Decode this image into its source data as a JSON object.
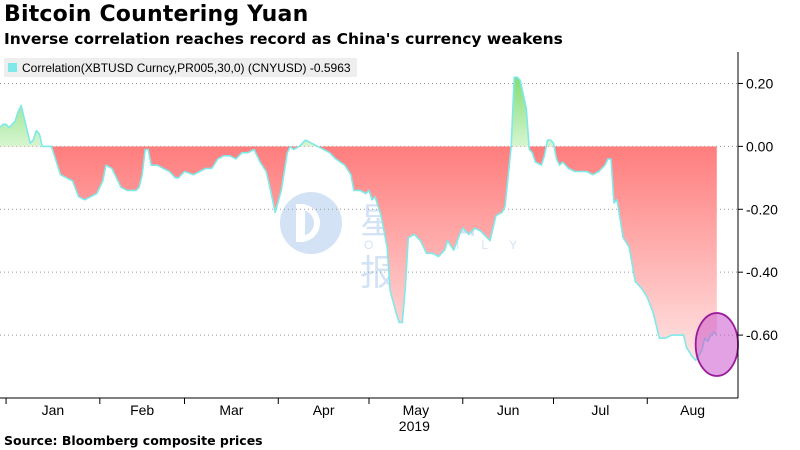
{
  "chart_data": {
    "type": "area",
    "title": "Bitcoin Countering Yuan",
    "subtitle": "Inverse correlation reaches record as China's currency weakens",
    "source": "Bloomberg composite prices",
    "legend": {
      "label": "Correlation(XBTUSD Curncy,PR005,30,0) (CNYUSD) -0.5963",
      "placement": "top-left"
    },
    "x_axis": {
      "type": "date",
      "range": [
        "2018-12-30",
        "2019-08-31"
      ],
      "month_labels": [
        "Jan",
        "Feb",
        "Mar",
        "Apr",
        "May",
        "Jun",
        "Jul",
        "Aug"
      ],
      "year_label": "2019"
    },
    "y_axis": {
      "side": "right",
      "ylim": [
        -0.8,
        0.3
      ],
      "ticks": [
        0.2,
        0.0,
        -0.2,
        -0.4,
        -0.6
      ],
      "tick_labels": [
        "0.20",
        "0.00",
        "-0.20",
        "-0.40",
        "-0.60"
      ],
      "grid": "horizontal dotted"
    },
    "colors": {
      "line": "#7fe9e9",
      "positive_top": "#7ddc72",
      "positive_bottom": "#d7f5d0",
      "negative_top": "#ff7d7d",
      "negative_bottom": "#ffe4e4",
      "highlight_fill": "#cc55cc",
      "highlight_stroke": "#9a1c9a"
    },
    "highlight": {
      "shape": "ellipse",
      "x_range": [
        "2019-08-17",
        "2019-08-31"
      ],
      "y_range": [
        -0.73,
        -0.53
      ]
    },
    "series": [
      {
        "name": "Correlation(XBTUSD Curncy,PR005,30,0) (CNYUSD)",
        "points": [
          [
            "2018-12-30",
            0.06
          ],
          [
            "2018-12-31",
            0.07
          ],
          [
            "2019-01-01",
            0.07
          ],
          [
            "2019-01-02",
            0.06
          ],
          [
            "2019-01-03",
            0.07
          ],
          [
            "2019-01-04",
            0.08
          ],
          [
            "2019-01-05",
            0.11
          ],
          [
            "2019-01-06",
            0.13
          ],
          [
            "2019-01-07",
            0.09
          ],
          [
            "2019-01-09",
            0.01
          ],
          [
            "2019-01-10",
            0.02
          ],
          [
            "2019-01-11",
            0.05
          ],
          [
            "2019-01-12",
            0.04
          ],
          [
            "2019-01-13",
            0.0
          ],
          [
            "2019-01-16",
            0.0
          ],
          [
            "2019-01-18",
            -0.06
          ],
          [
            "2019-01-19",
            -0.09
          ],
          [
            "2019-01-21",
            -0.1
          ],
          [
            "2019-01-23",
            -0.11
          ],
          [
            "2019-01-25",
            -0.16
          ],
          [
            "2019-01-27",
            -0.17
          ],
          [
            "2019-01-29",
            -0.16
          ],
          [
            "2019-01-31",
            -0.15
          ],
          [
            "2019-02-02",
            -0.11
          ],
          [
            "2019-02-03",
            -0.06
          ],
          [
            "2019-02-05",
            -0.07
          ],
          [
            "2019-02-06",
            -0.09
          ],
          [
            "2019-02-07",
            -0.11
          ],
          [
            "2019-02-08",
            -0.13
          ],
          [
            "2019-02-10",
            -0.14
          ],
          [
            "2019-02-13",
            -0.14
          ],
          [
            "2019-02-14",
            -0.13
          ],
          [
            "2019-02-15",
            -0.09
          ],
          [
            "2019-02-16",
            -0.01
          ],
          [
            "2019-02-17",
            -0.01
          ],
          [
            "2019-02-18",
            -0.06
          ],
          [
            "2019-02-20",
            -0.06
          ],
          [
            "2019-02-22",
            -0.07
          ],
          [
            "2019-02-24",
            -0.08
          ],
          [
            "2019-02-26",
            -0.1
          ],
          [
            "2019-02-27",
            -0.1
          ],
          [
            "2019-03-01",
            -0.08
          ],
          [
            "2019-03-04",
            -0.09
          ],
          [
            "2019-03-06",
            -0.08
          ],
          [
            "2019-03-08",
            -0.07
          ],
          [
            "2019-03-10",
            -0.07
          ],
          [
            "2019-03-12",
            -0.04
          ],
          [
            "2019-03-14",
            -0.03
          ],
          [
            "2019-03-16",
            -0.03
          ],
          [
            "2019-03-18",
            -0.04
          ],
          [
            "2019-03-20",
            -0.02
          ],
          [
            "2019-03-22",
            -0.02
          ],
          [
            "2019-03-24",
            -0.01
          ],
          [
            "2019-03-26",
            -0.05
          ],
          [
            "2019-03-28",
            -0.08
          ],
          [
            "2019-03-29",
            -0.12
          ],
          [
            "2019-03-31",
            -0.21
          ],
          [
            "2019-04-02",
            -0.14
          ],
          [
            "2019-04-03",
            -0.08
          ],
          [
            "2019-04-04",
            -0.02
          ],
          [
            "2019-04-05",
            0.0
          ],
          [
            "2019-04-06",
            -0.01
          ],
          [
            "2019-04-08",
            0.0
          ],
          [
            "2019-04-10",
            0.02
          ],
          [
            "2019-04-12",
            0.01
          ],
          [
            "2019-04-14",
            0.0
          ],
          [
            "2019-04-16",
            -0.01
          ],
          [
            "2019-04-18",
            -0.02
          ],
          [
            "2019-04-20",
            -0.04
          ],
          [
            "2019-04-23",
            -0.06
          ],
          [
            "2019-04-25",
            -0.09
          ],
          [
            "2019-04-26",
            -0.14
          ],
          [
            "2019-04-28",
            -0.14
          ],
          [
            "2019-04-30",
            -0.15
          ],
          [
            "2019-05-01",
            -0.14
          ],
          [
            "2019-05-02",
            -0.17
          ],
          [
            "2019-05-03",
            -0.16
          ],
          [
            "2019-05-05",
            -0.22
          ],
          [
            "2019-05-07",
            -0.32
          ],
          [
            "2019-05-08",
            -0.46
          ],
          [
            "2019-05-10",
            -0.53
          ],
          [
            "2019-05-11",
            -0.56
          ],
          [
            "2019-05-12",
            -0.56
          ],
          [
            "2019-05-13",
            -0.45
          ],
          [
            "2019-05-14",
            -0.29
          ],
          [
            "2019-05-16",
            -0.28
          ],
          [
            "2019-05-18",
            -0.3
          ],
          [
            "2019-05-20",
            -0.34
          ],
          [
            "2019-05-22",
            -0.34
          ],
          [
            "2019-05-24",
            -0.35
          ],
          [
            "2019-05-26",
            -0.33
          ],
          [
            "2019-05-27",
            -0.3
          ],
          [
            "2019-05-29",
            -0.33
          ],
          [
            "2019-05-31",
            -0.28
          ],
          [
            "2019-06-01",
            -0.26
          ],
          [
            "2019-06-03",
            -0.28
          ],
          [
            "2019-06-05",
            -0.26
          ],
          [
            "2019-06-07",
            -0.27
          ],
          [
            "2019-06-09",
            -0.29
          ],
          [
            "2019-06-10",
            -0.3
          ],
          [
            "2019-06-12",
            -0.22
          ],
          [
            "2019-06-14",
            -0.21
          ],
          [
            "2019-06-15",
            -0.19
          ],
          [
            "2019-06-17",
            0.0
          ],
          [
            "2019-06-18",
            0.22
          ],
          [
            "2019-06-19",
            0.22
          ],
          [
            "2019-06-20",
            0.21
          ],
          [
            "2019-06-22",
            0.12
          ],
          [
            "2019-06-23",
            -0.01
          ],
          [
            "2019-06-24",
            -0.02
          ],
          [
            "2019-06-25",
            -0.05
          ],
          [
            "2019-06-27",
            -0.06
          ],
          [
            "2019-06-28",
            -0.03
          ],
          [
            "2019-06-29",
            0.02
          ],
          [
            "2019-06-30",
            0.02
          ],
          [
            "2019-07-01",
            0.01
          ],
          [
            "2019-07-02",
            -0.04
          ],
          [
            "2019-07-03",
            -0.06
          ],
          [
            "2019-07-04",
            -0.05
          ],
          [
            "2019-07-06",
            -0.07
          ],
          [
            "2019-07-08",
            -0.08
          ],
          [
            "2019-07-10",
            -0.08
          ],
          [
            "2019-07-12",
            -0.08
          ],
          [
            "2019-07-14",
            -0.09
          ],
          [
            "2019-07-16",
            -0.08
          ],
          [
            "2019-07-18",
            -0.06
          ],
          [
            "2019-07-19",
            -0.04
          ],
          [
            "2019-07-20",
            -0.04
          ],
          [
            "2019-07-21",
            -0.18
          ],
          [
            "2019-07-22",
            -0.17
          ],
          [
            "2019-07-24",
            -0.29
          ],
          [
            "2019-07-26",
            -0.32
          ],
          [
            "2019-07-28",
            -0.43
          ],
          [
            "2019-07-30",
            -0.45
          ],
          [
            "2019-08-01",
            -0.48
          ],
          [
            "2019-08-03",
            -0.53
          ],
          [
            "2019-08-05",
            -0.61
          ],
          [
            "2019-08-07",
            -0.61
          ],
          [
            "2019-08-09",
            -0.6
          ],
          [
            "2019-08-11",
            -0.6
          ],
          [
            "2019-08-13",
            -0.6
          ],
          [
            "2019-08-14",
            -0.64
          ],
          [
            "2019-08-16",
            -0.67
          ],
          [
            "2019-08-17",
            -0.68
          ],
          [
            "2019-08-19",
            -0.65
          ],
          [
            "2019-08-20",
            -0.61
          ],
          [
            "2019-08-21",
            -0.62
          ],
          [
            "2019-08-22",
            -0.6
          ],
          [
            "2019-08-23",
            -0.59
          ],
          [
            "2019-08-24",
            -0.6
          ]
        ]
      }
    ]
  }
}
